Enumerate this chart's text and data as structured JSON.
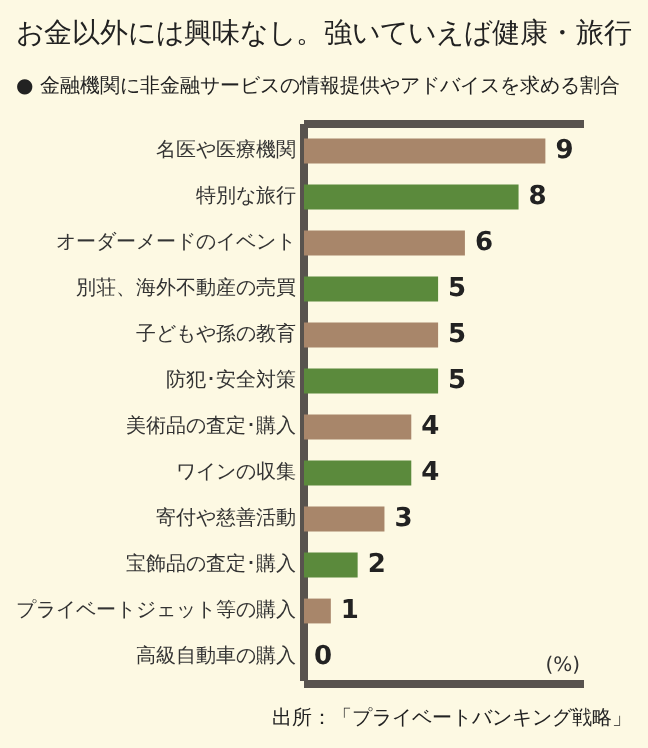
{
  "chart_data": {
    "type": "bar",
    "orientation": "horizontal",
    "title": "お金以外には興味なし。強いていえば健康・旅行",
    "subtitle": "● 金融機関に非金融サービスの情報提供やアドバイスを求める割合",
    "categories": [
      "名医や医療機関",
      "特別な旅行",
      "オーダーメードのイベント",
      "別荘、海外不動産の売買",
      "子どもや孫の教育",
      "防犯･安全対策",
      "美術品の査定･購入",
      "ワインの収集",
      "寄付や慈善活動",
      "宝飾品の査定･購入",
      "プライベートジェット等の購入",
      "高級自動車の購入"
    ],
    "values": [
      9,
      8,
      6,
      5,
      5,
      5,
      4,
      4,
      3,
      2,
      1,
      0
    ],
    "colors": [
      "#a8866a",
      "#5b8a3c",
      "#a8866a",
      "#5b8a3c",
      "#a8866a",
      "#5b8a3c",
      "#a8866a",
      "#5b8a3c",
      "#a8866a",
      "#5b8a3c",
      "#a8866a",
      "#5b8a3c"
    ],
    "data_labels": true,
    "xlabel": "(%)",
    "grid": false,
    "legend": false,
    "annotations": [
      "出所：「プライベートバンキング戦略」"
    ]
  }
}
